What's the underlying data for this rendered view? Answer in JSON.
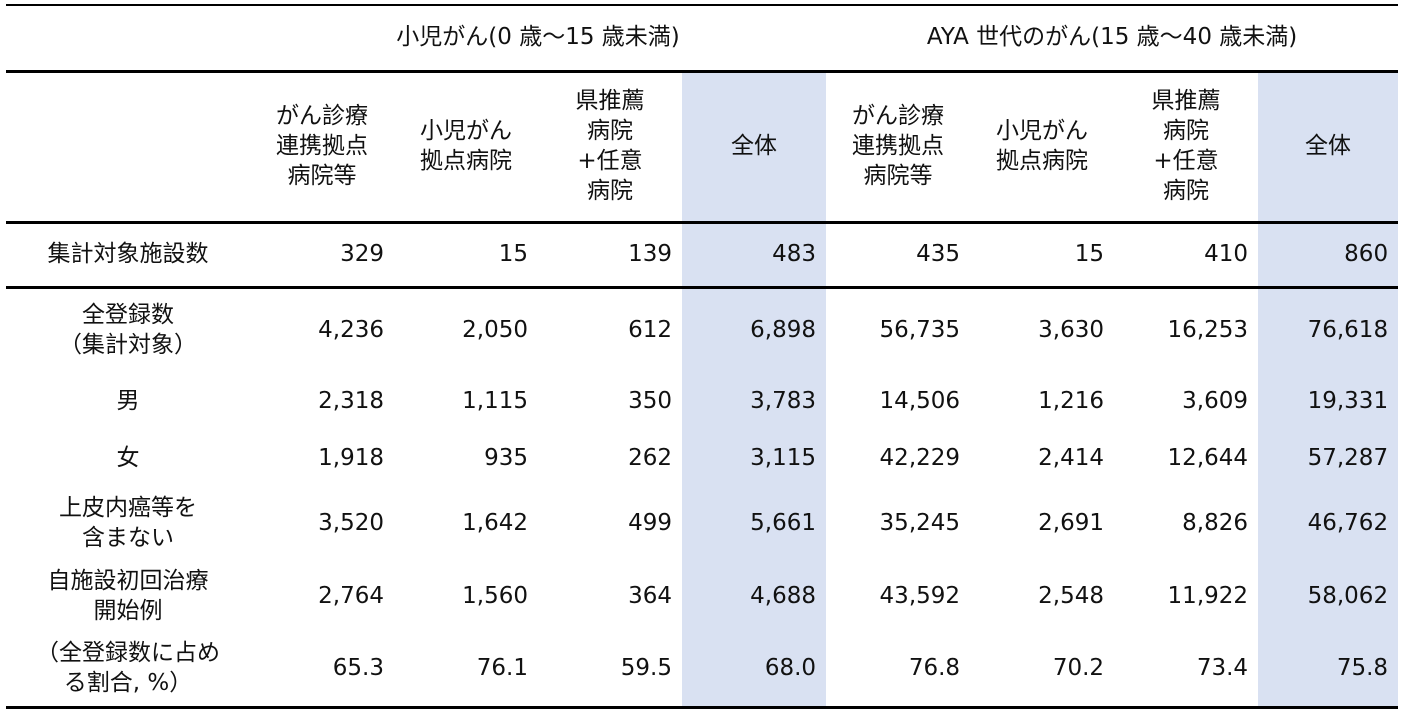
{
  "groups": [
    "小児がん(0 歳～15 歳未満)",
    "AYA 世代のがん(15 歳～40 歳未満)"
  ],
  "columns": {
    "c1": [
      "がん診療",
      "連携拠点",
      "病院等"
    ],
    "c2": [
      "小児がん",
      "拠点病院"
    ],
    "c3": [
      "県推薦",
      "病院",
      "+任意",
      "病院"
    ],
    "c4": "全体"
  },
  "rows": [
    {
      "label": [
        "集計対象施設数"
      ],
      "values": [
        "329",
        "15",
        "139",
        "483",
        "435",
        "15",
        "410",
        "860"
      ]
    },
    {
      "label": [
        "全登録数",
        "（集計対象）"
      ],
      "values": [
        "4,236",
        "2,050",
        "612",
        "6,898",
        "56,735",
        "3,630",
        "16,253",
        "76,618"
      ]
    },
    {
      "label": [
        "男"
      ],
      "values": [
        "2,318",
        "1,115",
        "350",
        "3,783",
        "14,506",
        "1,216",
        "3,609",
        "19,331"
      ]
    },
    {
      "label": [
        "女"
      ],
      "values": [
        "1,918",
        "935",
        "262",
        "3,115",
        "42,229",
        "2,414",
        "12,644",
        "57,287"
      ]
    },
    {
      "label": [
        "上皮内癌等を",
        "含まない"
      ],
      "values": [
        "3,520",
        "1,642",
        "499",
        "5,661",
        "35,245",
        "2,691",
        "8,826",
        "46,762"
      ]
    },
    {
      "label": [
        "自施設初回治療",
        "開始例"
      ],
      "values": [
        "2,764",
        "1,560",
        "364",
        "4,688",
        "43,592",
        "2,548",
        "11,922",
        "58,062"
      ]
    },
    {
      "label": [
        "（全登録数に占め",
        "る割合, %）"
      ],
      "values": [
        "65.3",
        "76.1",
        "59.5",
        "68.0",
        "76.8",
        "70.2",
        "73.4",
        "75.8"
      ]
    }
  ],
  "colors": {
    "total_column_bg": "#d9e1f2",
    "rule": "#000000"
  }
}
